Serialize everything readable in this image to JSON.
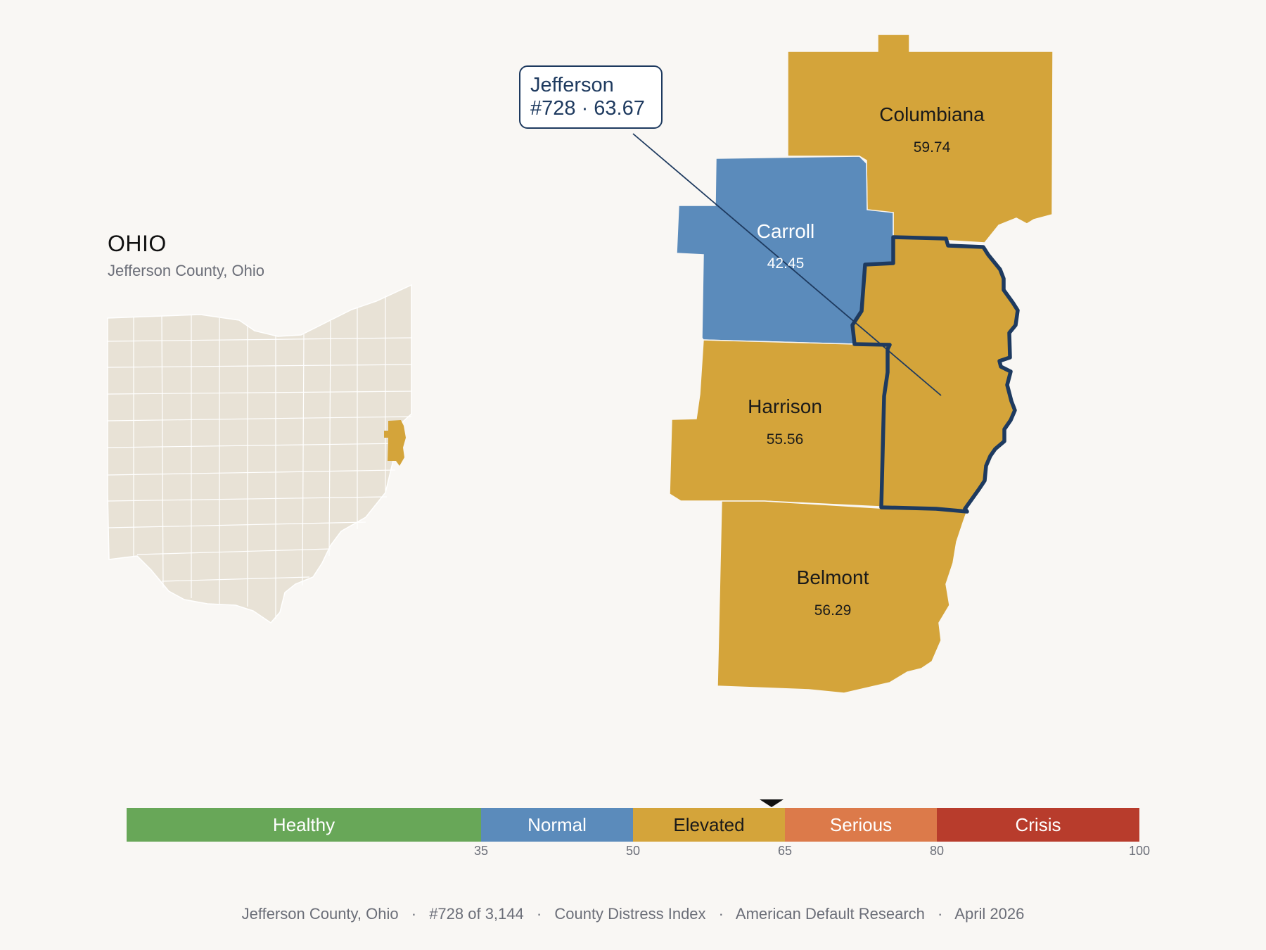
{
  "locator": {
    "state_name": "OHIO",
    "subtitle": "Jefferson County, Ohio",
    "base_color": "#e8e2d6",
    "highlight_color": "#d4a43a"
  },
  "callout": {
    "county": "Jefferson",
    "detail": "#728 · 63.67"
  },
  "counties": [
    {
      "name": "Columbiana",
      "value": "59.74",
      "category": "Elevated",
      "color": "#d4a43a"
    },
    {
      "name": "Carroll",
      "value": "42.45",
      "category": "Normal",
      "color": "#5b8bbb"
    },
    {
      "name": "Harrison",
      "value": "55.56",
      "category": "Elevated",
      "color": "#d4a43a"
    },
    {
      "name": "Belmont",
      "value": "56.29",
      "category": "Elevated",
      "color": "#d4a43a"
    },
    {
      "name": "Jefferson",
      "value": "63.67",
      "category": "Elevated",
      "color": "#d4a43a",
      "highlighted": true
    }
  ],
  "highlight_outline_color": "#1e3a5f",
  "scale": {
    "min": 0,
    "max": 100,
    "current": 63.67,
    "bands": [
      {
        "label": "Healthy",
        "from": 0,
        "to": 35,
        "color": "#68a758"
      },
      {
        "label": "Normal",
        "from": 35,
        "to": 50,
        "color": "#5b8bbb"
      },
      {
        "label": "Elevated",
        "from": 50,
        "to": 65,
        "color": "#d4a43a"
      },
      {
        "label": "Serious",
        "from": 65,
        "to": 80,
        "color": "#dc7a4a"
      },
      {
        "label": "Crisis",
        "from": 80,
        "to": 100,
        "color": "#b83c2c"
      }
    ],
    "ticks": [
      "35",
      "50",
      "65",
      "80",
      "100"
    ]
  },
  "footer": {
    "county": "Jefferson County, Ohio",
    "rank": "#728 of 3,144",
    "index": "County Distress Index",
    "source": "American Default Research",
    "date": "April 2026",
    "separator": "·"
  }
}
